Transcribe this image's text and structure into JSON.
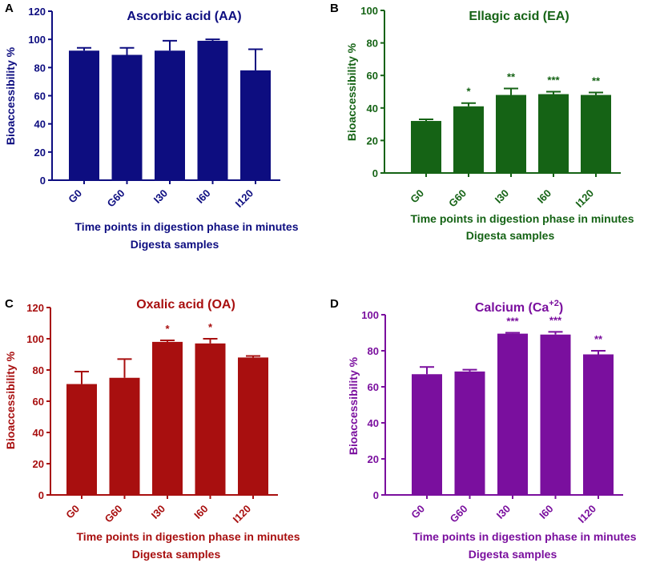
{
  "figure": {
    "panels_label": "Bioaccessibility figure"
  },
  "chart_data": [
    {
      "type": "bar",
      "panel_label": "A",
      "title": "Ascorbic acid  (AA)",
      "title_html": "",
      "ylabel": "Bioaccessibility %",
      "xlabel": "Time points in digestion phase in minutes",
      "xlabel2": "Digesta samples",
      "categories": [
        "G0",
        "G60",
        "I30",
        "I60",
        "I120"
      ],
      "values": [
        92,
        89,
        92,
        99,
        78
      ],
      "errors": [
        2,
        5,
        7,
        1,
        15
      ],
      "significance": [
        "",
        "",
        "",
        "",
        ""
      ],
      "ylim": [
        0,
        120
      ],
      "yticks": [
        0,
        20,
        40,
        60,
        80,
        100,
        120
      ],
      "color": "#0d0d80"
    },
    {
      "type": "bar",
      "panel_label": "B",
      "title": "Ellagic acid (EA)",
      "ylabel": "Bioaccessibility %",
      "xlabel": "Time points in digestion phase in minutes",
      "xlabel2": "Digesta samples",
      "categories": [
        "G0",
        "G60",
        "I30",
        "I60",
        "I120"
      ],
      "values": [
        32,
        41,
        48,
        48.5,
        48
      ],
      "errors": [
        1,
        2,
        4,
        1.5,
        1.5
      ],
      "significance": [
        "",
        "*",
        "**",
        "***",
        "**"
      ],
      "ylim": [
        0,
        100
      ],
      "yticks": [
        0,
        20,
        40,
        60,
        80,
        100
      ],
      "color": "#156315"
    },
    {
      "type": "bar",
      "panel_label": "C",
      "title": "Oxalic acid (OA)",
      "ylabel": "Bioaccessibility %",
      "xlabel": "Time points in digestion phase in minutes",
      "xlabel2": "Digesta samples",
      "categories": [
        "G0",
        "G60",
        "I30",
        "I60",
        "I120"
      ],
      "values": [
        71,
        75,
        98,
        97,
        88
      ],
      "errors": [
        8,
        12,
        1,
        3,
        1
      ],
      "significance": [
        "",
        "",
        "*",
        "*",
        ""
      ],
      "ylim": [
        0,
        120
      ],
      "yticks": [
        0,
        20,
        40,
        60,
        80,
        100,
        120
      ],
      "color": "#a80f0f"
    },
    {
      "type": "bar",
      "panel_label": "D",
      "title": "Calcium (Ca",
      "title_sup": "+2",
      "title_end": ")",
      "ylabel": "Bioaccessibility %",
      "xlabel": "Time points in digestion phase in minutes",
      "xlabel2": "Digesta samples",
      "categories": [
        "G0",
        "G60",
        "I30",
        "I60",
        "I120"
      ],
      "values": [
        67,
        68.5,
        89.5,
        89,
        78
      ],
      "errors": [
        4,
        1,
        0.5,
        1.5,
        2
      ],
      "significance": [
        "",
        "",
        "***",
        "***",
        "**"
      ],
      "ylim": [
        0,
        100
      ],
      "yticks": [
        0,
        20,
        40,
        60,
        80,
        100
      ],
      "color": "#7a0f9e"
    }
  ]
}
